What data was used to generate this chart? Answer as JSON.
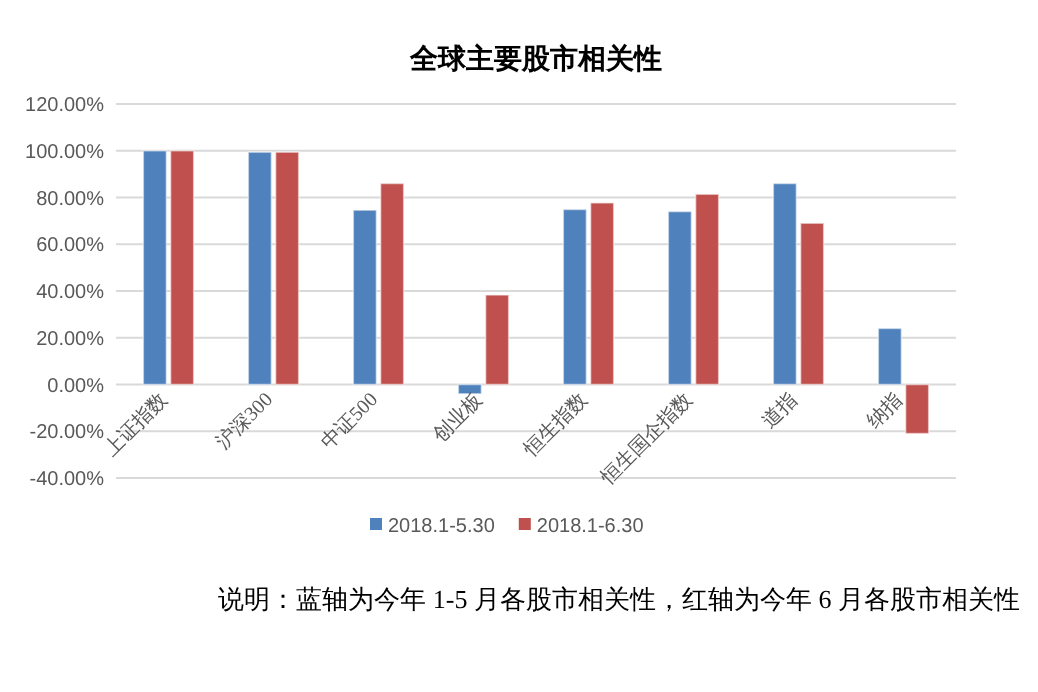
{
  "chart_data": {
    "type": "bar",
    "title": "全球主要股市相关性",
    "categories": [
      "上证指数",
      "沪深300",
      "中证500",
      "创业板",
      "恒生指数",
      "恒生国企指数",
      "道指",
      "纳指"
    ],
    "series": [
      {
        "name": "2018.1-5.30",
        "color": "#4f81bd",
        "values": [
          100,
          99.4,
          74.6,
          -4,
          74.9,
          74,
          86,
          24
        ]
      },
      {
        "name": "2018.1-6.30",
        "color": "#c0504d",
        "values": [
          100,
          99.4,
          86,
          38.3,
          77.7,
          81.4,
          69,
          -21
        ]
      }
    ],
    "ylim": [
      -40,
      120
    ],
    "yticks": [
      {
        "value": -40,
        "label": "-40.00%"
      },
      {
        "value": -20,
        "label": "-20.00%"
      },
      {
        "value": 0,
        "label": "0.00%"
      },
      {
        "value": 20,
        "label": "20.00%"
      },
      {
        "value": 40,
        "label": "40.00%"
      },
      {
        "value": 60,
        "label": "60.00%"
      },
      {
        "value": 80,
        "label": "80.00%"
      },
      {
        "value": 100,
        "label": "100.00%"
      },
      {
        "value": 120,
        "label": "120.00%"
      }
    ],
    "grid": "y",
    "legend": "bottom",
    "annotations": [
      "说明：蓝轴为今年 1-5 月各股市相关性，红轴为今年 6 月各股市相关性"
    ]
  }
}
